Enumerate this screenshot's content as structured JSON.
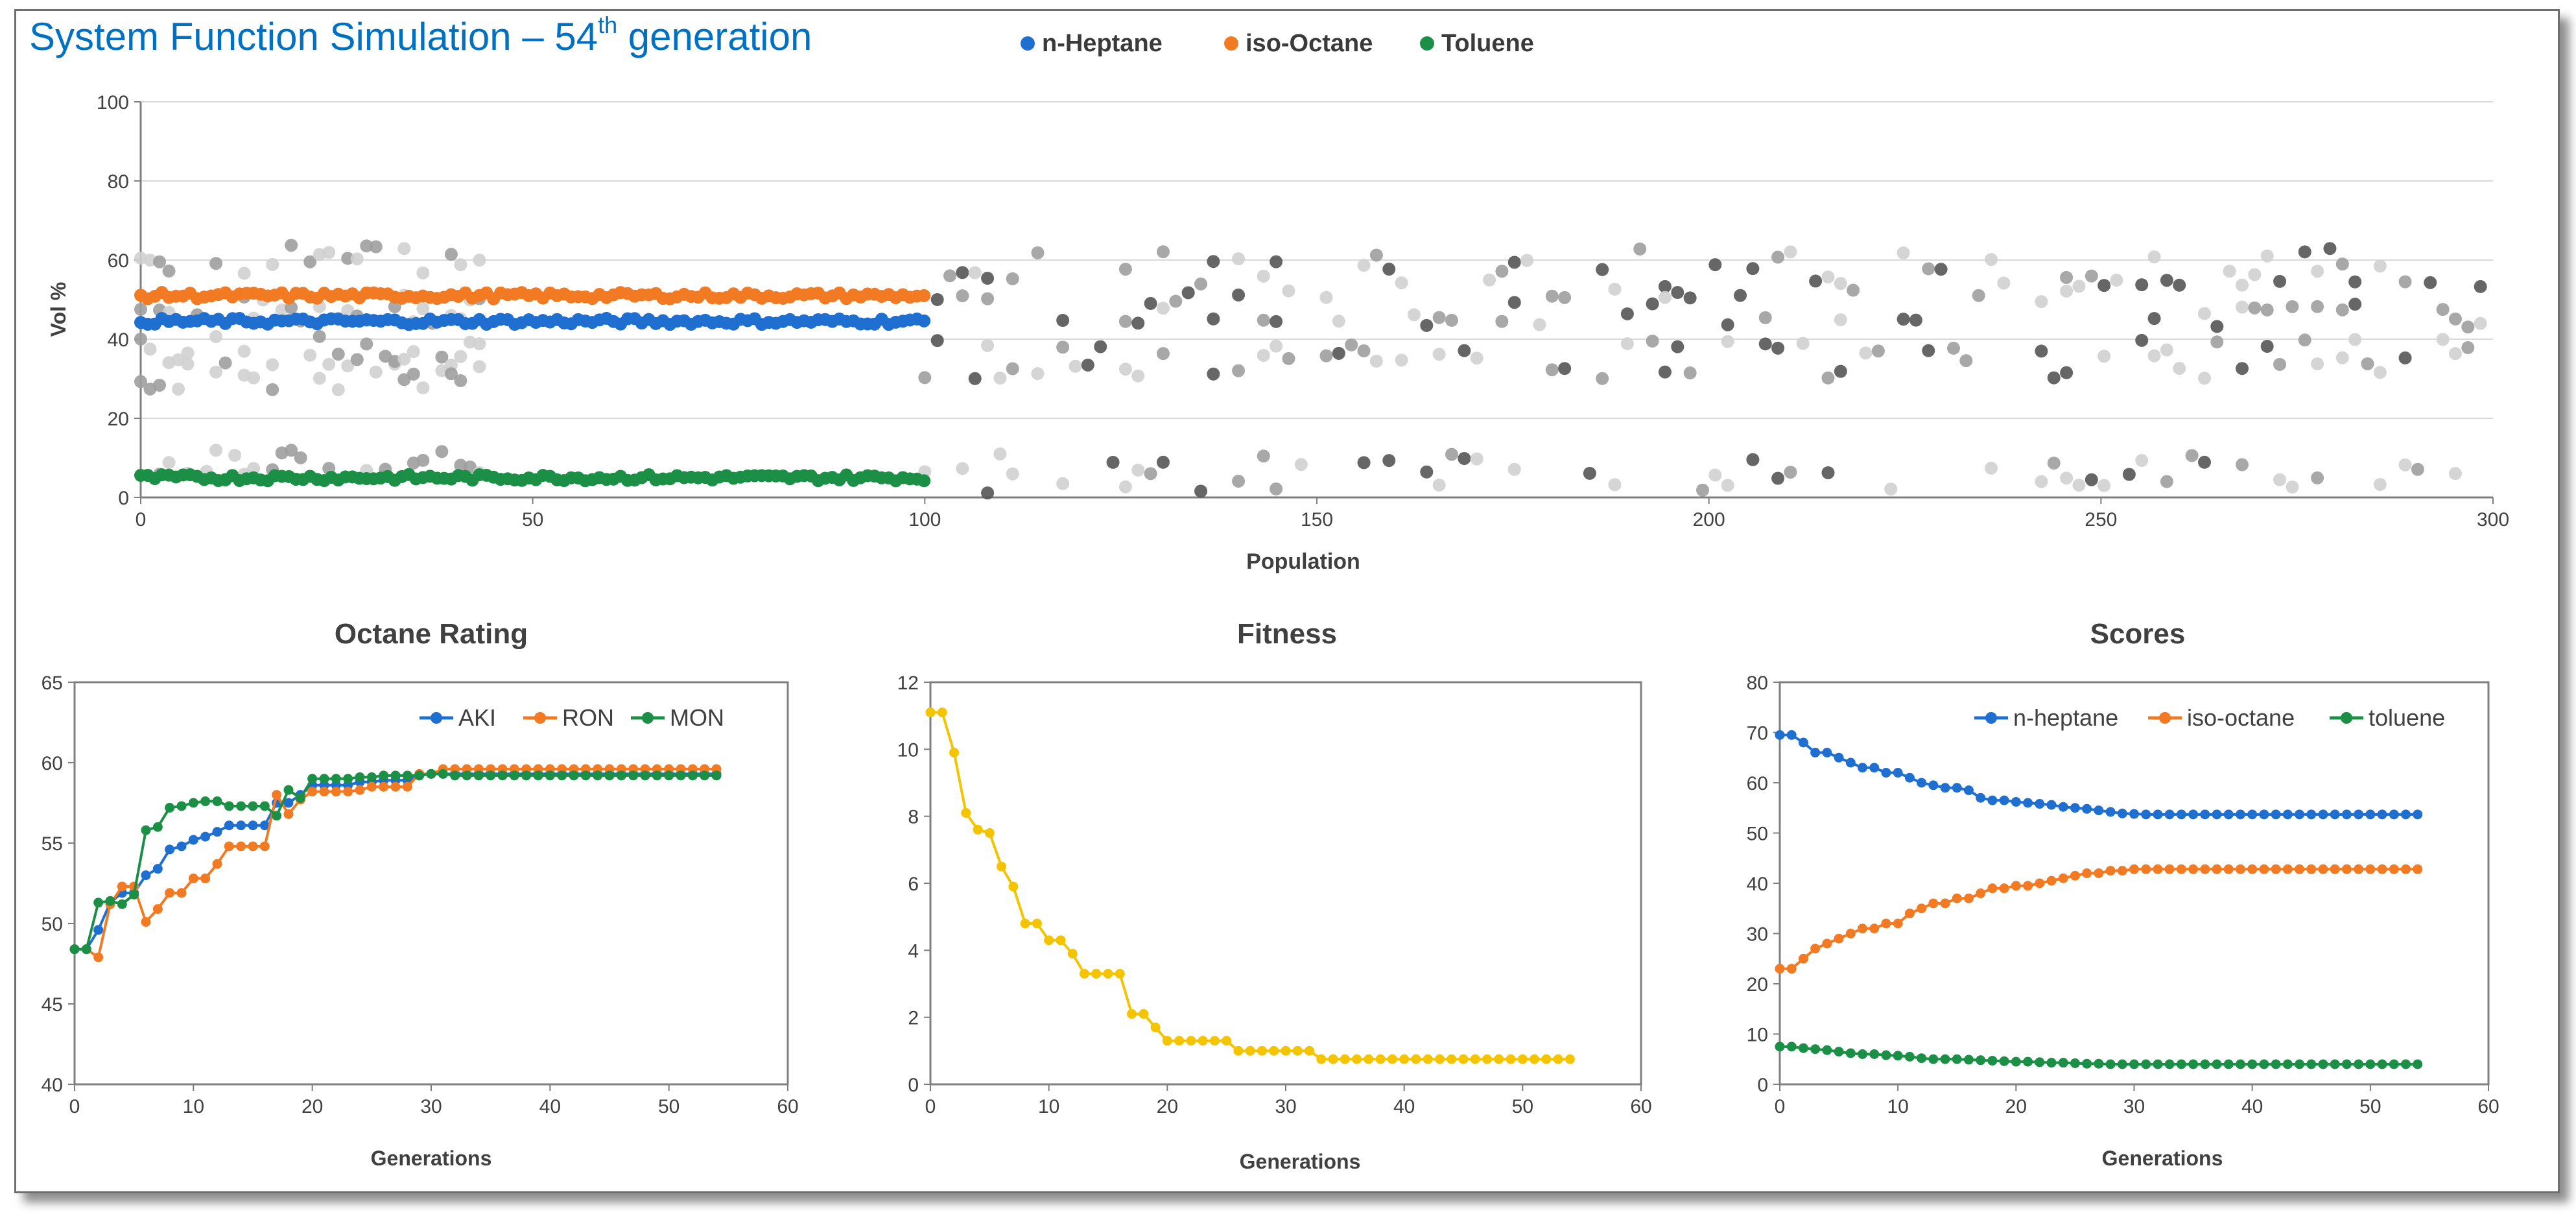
{
  "page": {
    "title_main": "System Function Simulation – 54",
    "title_sup": "th",
    "title_end": " generation"
  },
  "colors": {
    "title": "#0070c0",
    "blue": "#1f6fd1",
    "orange": "#f27a22",
    "green": "#1a8f45",
    "yellow": "#f5c400",
    "grey_light": "#d0d0d0",
    "grey_mid": "#9e9e9e",
    "grey_dark": "#555555",
    "grid": "#d9d9d9",
    "axis": "#7f7f7f"
  },
  "chart_data": [
    {
      "id": "population",
      "type": "scatter",
      "title": "",
      "xlabel": "Population",
      "ylabel": "Vol %",
      "xlim": [
        0,
        300
      ],
      "ylim": [
        0,
        100
      ],
      "xticks": [
        0,
        50,
        100,
        150,
        200,
        250,
        300
      ],
      "yticks": [
        0,
        20,
        40,
        60,
        80,
        100
      ],
      "legend": [
        {
          "name": "n-Heptane",
          "color": "#1f6fd1"
        },
        {
          "name": "iso-Octane",
          "color": "#f27a22"
        },
        {
          "name": "Toluene",
          "color": "#1a8f45"
        }
      ],
      "series": [
        {
          "name": "n-Heptane",
          "x_range": [
            0,
            100
          ],
          "value": 44.5,
          "color": "#1f6fd1"
        },
        {
          "name": "iso-Octane",
          "x_range": [
            0,
            100
          ],
          "value": 51.0,
          "color": "#f27a22"
        },
        {
          "name": "Toluene",
          "x_range": [
            0,
            100
          ],
          "value": 5.0,
          "color": "#1a8f45"
        }
      ],
      "background_bands": [
        {
          "x_range": [
            0,
            44
          ],
          "values": [
            60,
            48,
            37,
            31,
            8
          ],
          "color": "grey_light"
        },
        {
          "x_range": [
            100,
            300
          ],
          "values": [
            58,
            48,
            35,
            6
          ],
          "color": "grey_mid"
        }
      ]
    },
    {
      "id": "octane",
      "type": "line",
      "title": "Octane Rating",
      "xlabel": "Generations",
      "ylabel": "",
      "xlim": [
        0,
        60
      ],
      "ylim": [
        40,
        65
      ],
      "xticks": [
        0,
        10,
        20,
        30,
        40,
        50,
        60
      ],
      "yticks": [
        40,
        45,
        50,
        55,
        60,
        65
      ],
      "legend_position": "top-right",
      "series": [
        {
          "name": "AKI",
          "color": "#1f6fd1",
          "x": [
            0,
            1,
            2,
            3,
            4,
            5,
            6,
            7,
            8,
            9,
            10,
            11,
            12,
            13,
            14,
            15,
            16,
            17,
            18,
            19,
            20,
            21,
            22,
            23,
            24,
            25,
            26,
            27,
            28,
            29,
            30,
            31,
            32,
            33,
            34,
            35,
            36,
            37,
            38,
            39,
            40,
            41,
            42,
            43,
            44,
            45,
            46,
            47,
            48,
            49,
            50,
            51,
            52,
            53,
            54
          ],
          "y": [
            48.4,
            48.4,
            49.6,
            51.3,
            51.9,
            51.9,
            53.0,
            53.4,
            54.6,
            54.8,
            55.2,
            55.4,
            55.7,
            56.1,
            56.1,
            56.1,
            56.1,
            57.5,
            57.5,
            58.0,
            58.6,
            58.6,
            58.6,
            58.6,
            58.8,
            58.8,
            58.9,
            58.9,
            58.9,
            59.2,
            59.3,
            59.3,
            59.3,
            59.3,
            59.3,
            59.3,
            59.3,
            59.3,
            59.3,
            59.3,
            59.3,
            59.3,
            59.3,
            59.3,
            59.3,
            59.3,
            59.3,
            59.3,
            59.3,
            59.3,
            59.3,
            59.3,
            59.3,
            59.3,
            59.3
          ]
        },
        {
          "name": "RON",
          "color": "#f27a22",
          "x": [
            0,
            1,
            2,
            3,
            4,
            5,
            6,
            7,
            8,
            9,
            10,
            11,
            12,
            13,
            14,
            15,
            16,
            17,
            18,
            19,
            20,
            21,
            22,
            23,
            24,
            25,
            26,
            27,
            28,
            29,
            30,
            31,
            32,
            33,
            34,
            35,
            36,
            37,
            38,
            39,
            40,
            41,
            42,
            43,
            44,
            45,
            46,
            47,
            48,
            49,
            50,
            51,
            52,
            53,
            54
          ],
          "y": [
            48.4,
            48.4,
            47.9,
            51.2,
            52.3,
            52.3,
            50.1,
            50.9,
            51.9,
            51.9,
            52.8,
            52.8,
            53.7,
            54.8,
            54.8,
            54.8,
            54.8,
            58.0,
            56.8,
            57.7,
            58.2,
            58.2,
            58.2,
            58.2,
            58.3,
            58.5,
            58.5,
            58.5,
            58.5,
            59.3,
            59.3,
            59.6,
            59.6,
            59.6,
            59.6,
            59.6,
            59.6,
            59.6,
            59.6,
            59.6,
            59.6,
            59.6,
            59.6,
            59.6,
            59.6,
            59.6,
            59.6,
            59.6,
            59.6,
            59.6,
            59.6,
            59.6,
            59.6,
            59.6,
            59.6
          ]
        },
        {
          "name": "MON",
          "color": "#1a8f45",
          "x": [
            0,
            1,
            2,
            3,
            4,
            5,
            6,
            7,
            8,
            9,
            10,
            11,
            12,
            13,
            14,
            15,
            16,
            17,
            18,
            19,
            20,
            21,
            22,
            23,
            24,
            25,
            26,
            27,
            28,
            29,
            30,
            31,
            32,
            33,
            34,
            35,
            36,
            37,
            38,
            39,
            40,
            41,
            42,
            43,
            44,
            45,
            46,
            47,
            48,
            49,
            50,
            51,
            52,
            53,
            54
          ],
          "y": [
            48.4,
            48.4,
            51.3,
            51.4,
            51.2,
            51.8,
            55.8,
            56.0,
            57.2,
            57.3,
            57.5,
            57.6,
            57.6,
            57.3,
            57.3,
            57.3,
            57.3,
            56.7,
            58.3,
            57.8,
            59.0,
            59.0,
            59.0,
            59.0,
            59.1,
            59.1,
            59.2,
            59.2,
            59.2,
            59.2,
            59.3,
            59.3,
            59.2,
            59.2,
            59.2,
            59.2,
            59.2,
            59.2,
            59.2,
            59.2,
            59.2,
            59.2,
            59.2,
            59.2,
            59.2,
            59.2,
            59.2,
            59.2,
            59.2,
            59.2,
            59.2,
            59.2,
            59.2,
            59.2,
            59.2
          ]
        }
      ]
    },
    {
      "id": "fitness",
      "type": "line",
      "title": "Fitness",
      "xlabel": "Generations",
      "ylabel": "",
      "xlim": [
        0,
        60
      ],
      "ylim": [
        0,
        12
      ],
      "xticks": [
        0,
        10,
        20,
        30,
        40,
        50,
        60
      ],
      "yticks": [
        0,
        2,
        4,
        6,
        8,
        10,
        12
      ],
      "series": [
        {
          "name": "Fitness",
          "color": "#f5c400",
          "x": [
            0,
            1,
            2,
            3,
            4,
            5,
            6,
            7,
            8,
            9,
            10,
            11,
            12,
            13,
            14,
            15,
            16,
            17,
            18,
            19,
            20,
            21,
            22,
            23,
            24,
            25,
            26,
            27,
            28,
            29,
            30,
            31,
            32,
            33,
            34,
            35,
            36,
            37,
            38,
            39,
            40,
            41,
            42,
            43,
            44,
            45,
            46,
            47,
            48,
            49,
            50,
            51,
            52,
            53,
            54
          ],
          "y": [
            11.1,
            11.1,
            9.9,
            8.1,
            7.6,
            7.5,
            6.5,
            5.9,
            4.8,
            4.8,
            4.3,
            4.3,
            3.9,
            3.3,
            3.3,
            3.3,
            3.3,
            2.1,
            2.1,
            1.7,
            1.3,
            1.3,
            1.3,
            1.3,
            1.3,
            1.3,
            1.0,
            1.0,
            1.0,
            1.0,
            1.0,
            1.0,
            1.0,
            0.75,
            0.75,
            0.75,
            0.75,
            0.75,
            0.75,
            0.75,
            0.75,
            0.75,
            0.75,
            0.75,
            0.75,
            0.75,
            0.75,
            0.75,
            0.75,
            0.75,
            0.75,
            0.75,
            0.75,
            0.75,
            0.75
          ]
        }
      ]
    },
    {
      "id": "scores",
      "type": "line",
      "title": "Scores",
      "xlabel": "Generations",
      "ylabel": "",
      "xlim": [
        0,
        60
      ],
      "ylim": [
        0,
        80
      ],
      "xticks": [
        0,
        10,
        20,
        30,
        40,
        50,
        60
      ],
      "yticks": [
        0,
        10,
        20,
        30,
        40,
        50,
        60,
        70,
        80
      ],
      "legend_position": "top-right",
      "series": [
        {
          "name": "n-heptane",
          "color": "#1f6fd1",
          "x": [
            0,
            1,
            2,
            3,
            4,
            5,
            6,
            7,
            8,
            9,
            10,
            11,
            12,
            13,
            14,
            15,
            16,
            17,
            18,
            19,
            20,
            21,
            22,
            23,
            24,
            25,
            26,
            27,
            28,
            29,
            30,
            31,
            32,
            33,
            34,
            35,
            36,
            37,
            38,
            39,
            40,
            41,
            42,
            43,
            44,
            45,
            46,
            47,
            48,
            49,
            50,
            51,
            52,
            53,
            54
          ],
          "y": [
            69.5,
            69.5,
            68.0,
            66.0,
            66.0,
            65.0,
            64.0,
            63.0,
            63.0,
            62.0,
            62.0,
            61.0,
            60.0,
            59.5,
            59.0,
            59.0,
            58.5,
            57.0,
            56.5,
            56.5,
            56.2,
            56.0,
            55.8,
            55.6,
            55.2,
            55.0,
            54.8,
            54.5,
            54.2,
            53.9,
            53.8,
            53.7,
            53.7,
            53.7,
            53.7,
            53.7,
            53.7,
            53.7,
            53.7,
            53.7,
            53.7,
            53.7,
            53.7,
            53.7,
            53.7,
            53.7,
            53.7,
            53.7,
            53.7,
            53.7,
            53.7,
            53.7,
            53.7,
            53.7,
            53.7
          ]
        },
        {
          "name": "iso-octane",
          "color": "#f27a22",
          "x": [
            0,
            1,
            2,
            3,
            4,
            5,
            6,
            7,
            8,
            9,
            10,
            11,
            12,
            13,
            14,
            15,
            16,
            17,
            18,
            19,
            20,
            21,
            22,
            23,
            24,
            25,
            26,
            27,
            28,
            29,
            30,
            31,
            32,
            33,
            34,
            35,
            36,
            37,
            38,
            39,
            40,
            41,
            42,
            43,
            44,
            45,
            46,
            47,
            48,
            49,
            50,
            51,
            52,
            53,
            54
          ],
          "y": [
            23.0,
            23.0,
            25.0,
            27.0,
            28.0,
            29.0,
            30.0,
            31.0,
            31.0,
            32.0,
            32.0,
            34.0,
            35.0,
            36.0,
            36.0,
            37.0,
            37.0,
            38.0,
            39.0,
            39.0,
            39.5,
            39.5,
            40.0,
            40.5,
            41.0,
            41.5,
            42.0,
            42.0,
            42.5,
            42.5,
            42.8,
            42.8,
            42.8,
            42.8,
            42.8,
            42.8,
            42.8,
            42.8,
            42.8,
            42.8,
            42.8,
            42.8,
            42.8,
            42.8,
            42.8,
            42.8,
            42.8,
            42.8,
            42.8,
            42.8,
            42.8,
            42.8,
            42.8,
            42.8,
            42.8
          ]
        },
        {
          "name": "toluene",
          "color": "#1a8f45",
          "x": [
            0,
            1,
            2,
            3,
            4,
            5,
            6,
            7,
            8,
            9,
            10,
            11,
            12,
            13,
            14,
            15,
            16,
            17,
            18,
            19,
            20,
            21,
            22,
            23,
            24,
            25,
            26,
            27,
            28,
            29,
            30,
            31,
            32,
            33,
            34,
            35,
            36,
            37,
            38,
            39,
            40,
            41,
            42,
            43,
            44,
            45,
            46,
            47,
            48,
            49,
            50,
            51,
            52,
            53,
            54
          ],
          "y": [
            7.5,
            7.5,
            7.2,
            7.0,
            6.8,
            6.5,
            6.2,
            6.0,
            6.0,
            5.8,
            5.7,
            5.5,
            5.2,
            5.0,
            5.0,
            5.0,
            4.9,
            4.8,
            4.7,
            4.6,
            4.5,
            4.5,
            4.4,
            4.3,
            4.3,
            4.2,
            4.1,
            4.1,
            4.0,
            4.0,
            4.0,
            4.0,
            4.0,
            4.0,
            4.0,
            4.0,
            4.0,
            4.0,
            4.0,
            4.0,
            4.0,
            4.0,
            4.0,
            4.0,
            4.0,
            4.0,
            4.0,
            4.0,
            4.0,
            4.0,
            4.0,
            4.0,
            4.0,
            4.0,
            4.0
          ]
        }
      ]
    }
  ]
}
